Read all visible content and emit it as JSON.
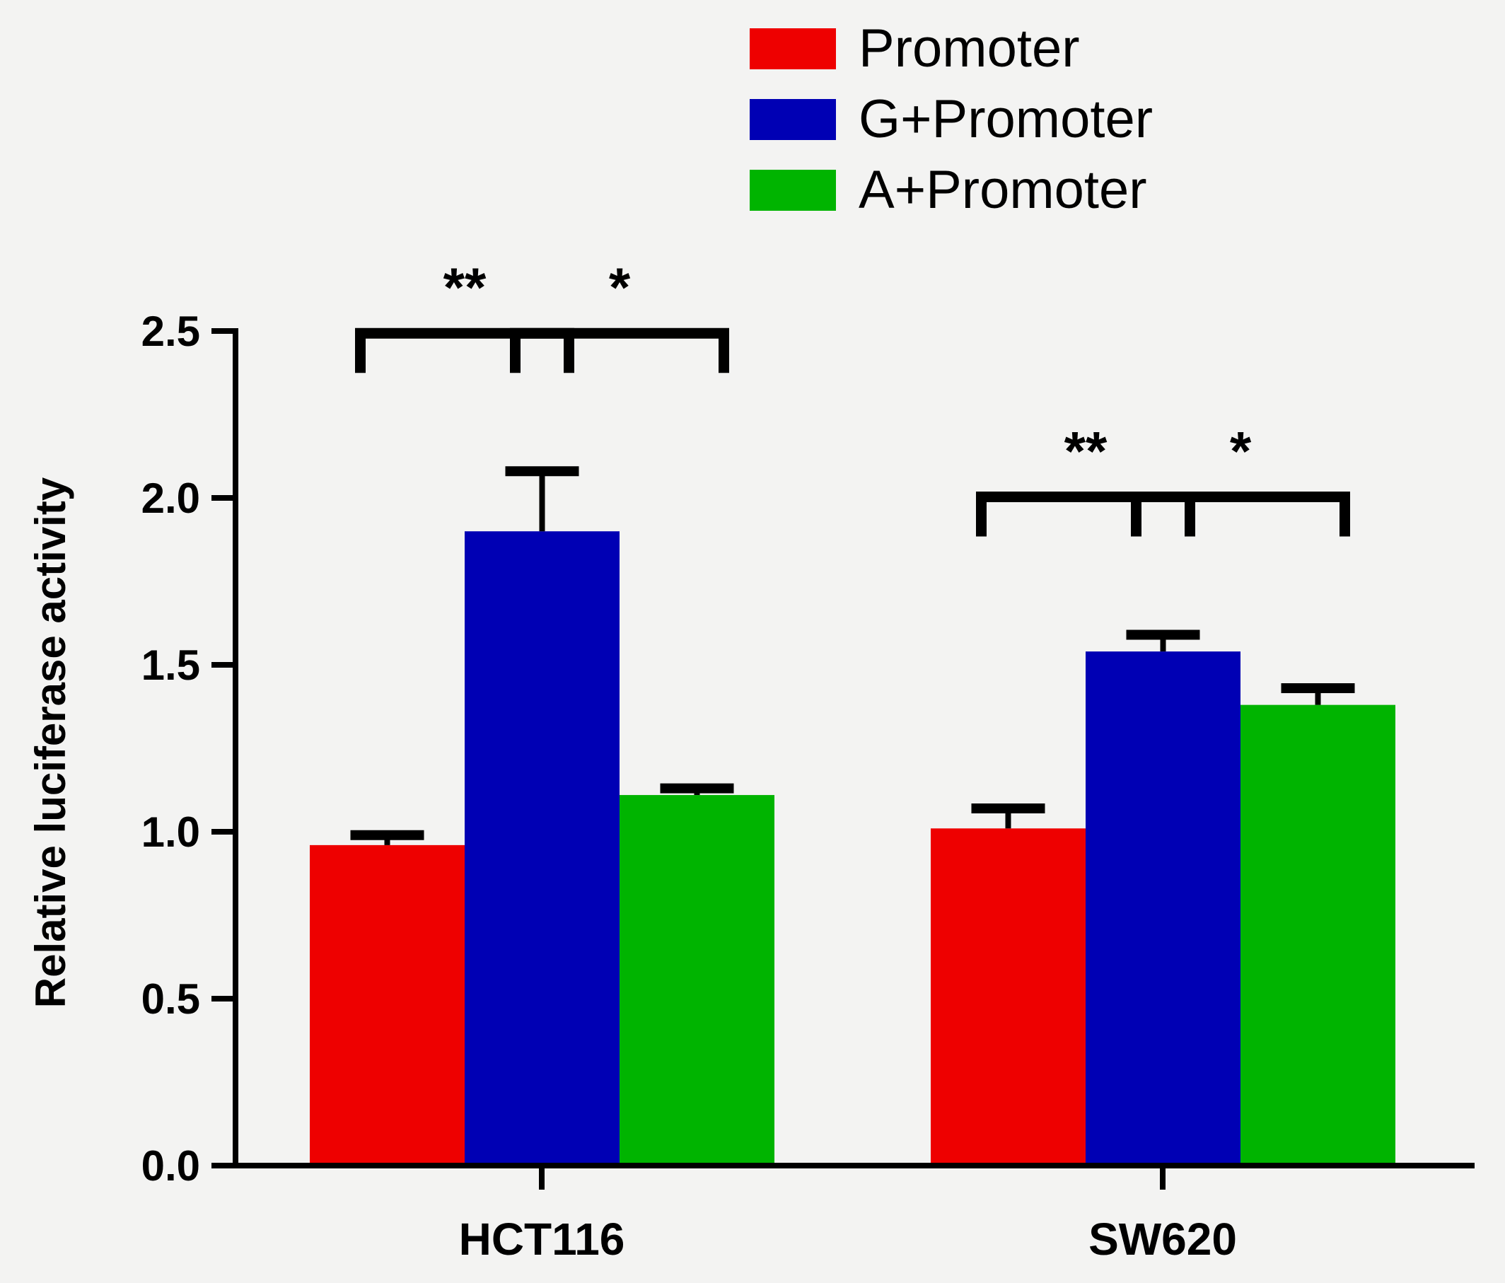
{
  "chart_data": {
    "type": "bar",
    "categories": [
      "HCT116",
      "SW620"
    ],
    "series": [
      {
        "name": "Promoter",
        "color": "#ee0000",
        "values": [
          0.96,
          1.01
        ],
        "errors": [
          0.03,
          0.06
        ]
      },
      {
        "name": "G+Promoter",
        "color": "#0000b4",
        "values": [
          1.9,
          1.54
        ],
        "errors": [
          0.18,
          0.05
        ]
      },
      {
        "name": "A+Promoter",
        "color": "#00b400",
        "values": [
          1.11,
          1.38
        ],
        "errors": [
          0.02,
          0.05
        ]
      }
    ],
    "ylabel": "Relative luciferase activity",
    "xlabel": "",
    "ylim": [
      0,
      2.5
    ],
    "yticks": [
      "0.0",
      "0.5",
      "1.0",
      "1.5",
      "2.0",
      "2.5"
    ],
    "grid": false,
    "legend_position": "top-right",
    "significance": [
      {
        "category": "HCT116",
        "from_series": 0,
        "to_series": 1,
        "label": "**"
      },
      {
        "category": "HCT116",
        "from_series": 1,
        "to_series": 2,
        "label": "*"
      },
      {
        "category": "SW620",
        "from_series": 0,
        "to_series": 1,
        "label": "**"
      },
      {
        "category": "SW620",
        "from_series": 1,
        "to_series": 2,
        "label": "*"
      }
    ]
  }
}
